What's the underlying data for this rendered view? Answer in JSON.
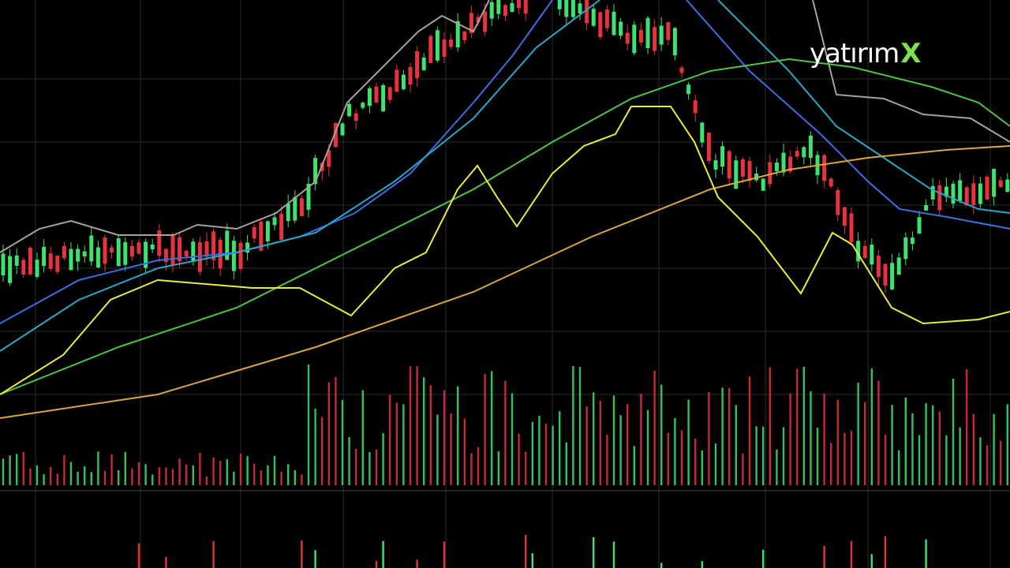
{
  "logo": {
    "text": "yatırım",
    "mark": "X"
  }
}
